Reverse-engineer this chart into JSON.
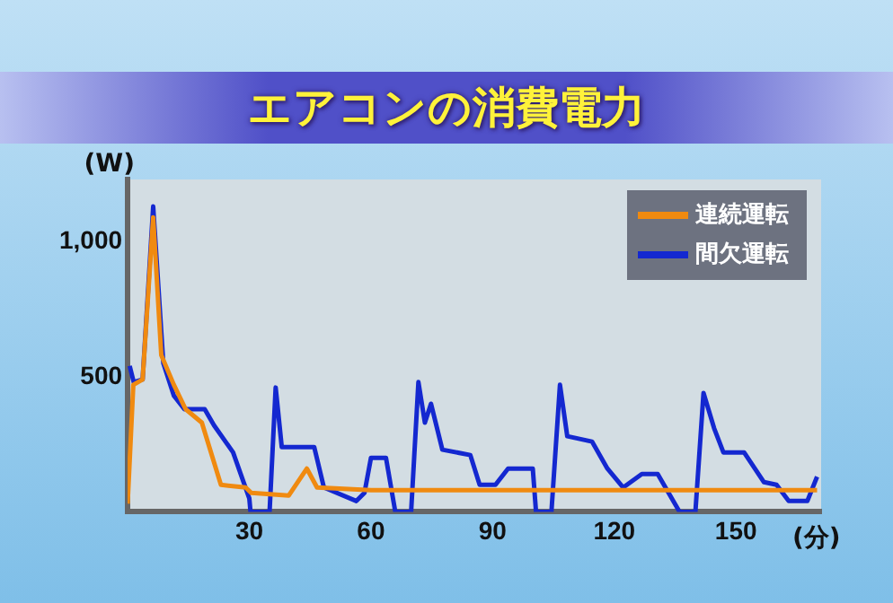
{
  "chart_data": {
    "type": "line",
    "title": "エアコンの消費電力",
    "xlabel": "(分)",
    "ylabel": "(W)",
    "xlim": [
      0,
      171
    ],
    "xticks": [
      30,
      60,
      90,
      120,
      150
    ],
    "ylim": [
      0,
      1230
    ],
    "yticks": [
      {
        "value": 500,
        "label": "500"
      },
      {
        "value": 1000,
        "label": "1,000"
      }
    ],
    "legend": "top right",
    "grid": false,
    "series": [
      {
        "name": "連続運転",
        "color": "#f08a10",
        "x": [
          0,
          1.4,
          3.7,
          6.3,
          8.3,
          11.4,
          14.3,
          18.3,
          23,
          29.1,
          30.5,
          39.7,
          44.2,
          46.7,
          60,
          90,
          120,
          150,
          160,
          170
        ],
        "values": [
          30,
          470,
          490,
          1090,
          580,
          470,
          380,
          330,
          100,
          90,
          70,
          60,
          160,
          90,
          80,
          80,
          80,
          80,
          80,
          80
        ]
      },
      {
        "name": "間欠運転",
        "color": "#1428d0",
        "x": [
          0.5,
          1.5,
          3.7,
          6.3,
          8.8,
          11.4,
          14,
          19,
          21.3,
          26,
          30,
          30.3,
          35,
          36.5,
          38,
          46,
          48.4,
          56.4,
          58.4,
          60,
          63.7,
          66,
          69.9,
          71.7,
          73.3,
          74.8,
          77.6,
          84.5,
          86.8,
          90.7,
          93.8,
          99.9,
          100.7,
          104.5,
          106.6,
          108.4,
          114.5,
          118.3,
          122.2,
          126.8,
          130.7,
          133,
          136.1,
          140,
          142,
          144.6,
          146.9,
          152,
          156.9,
          160,
          163,
          167.6,
          170
        ],
        "values": [
          540,
          480,
          490,
          1130,
          550,
          430,
          380,
          380,
          320,
          220,
          50,
          0,
          0,
          460,
          240,
          240,
          90,
          40,
          70,
          200,
          200,
          0,
          0,
          480,
          330,
          400,
          230,
          210,
          100,
          100,
          160,
          160,
          0,
          0,
          470,
          280,
          260,
          160,
          90,
          140,
          140,
          80,
          0,
          0,
          440,
          310,
          220,
          220,
          110,
          100,
          40,
          40,
          130
        ]
      }
    ]
  }
}
